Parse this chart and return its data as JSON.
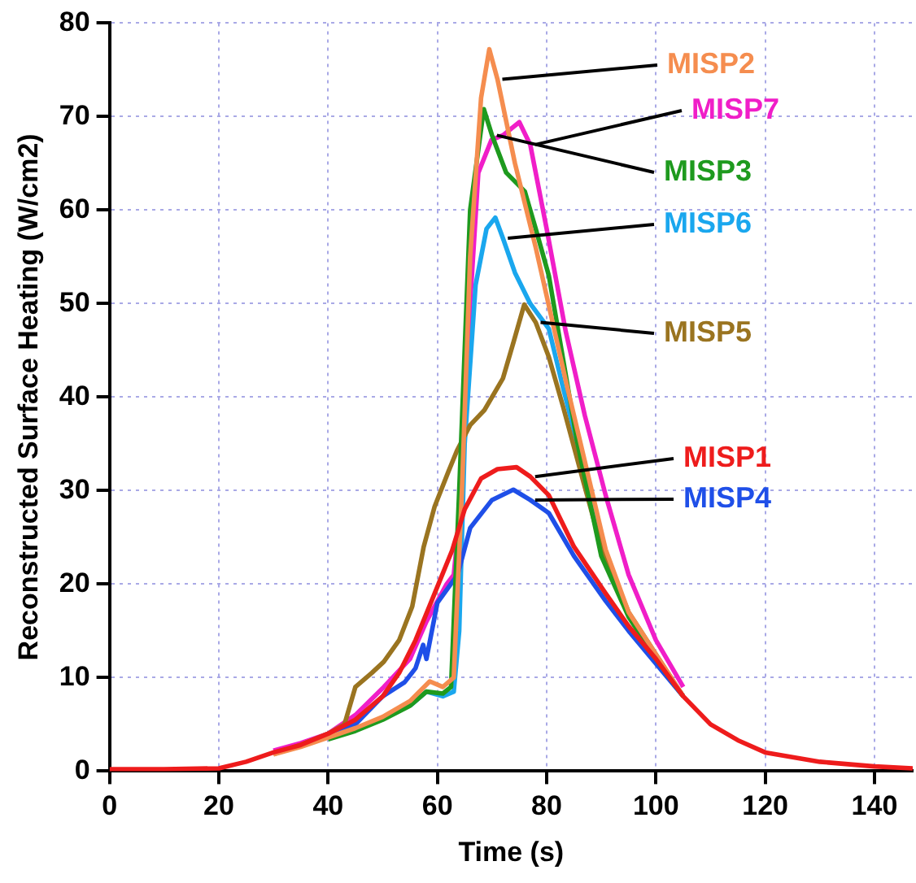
{
  "chart_data": {
    "type": "line",
    "xlabel": "Time (s)",
    "ylabel": "Reconstructed Surface Heating (W/cm2)",
    "xlim": [
      0,
      147
    ],
    "xticks": [
      0,
      20,
      40,
      60,
      80,
      100,
      120,
      140
    ],
    "ylim": [
      0,
      80
    ],
    "yticks": [
      0,
      10,
      20,
      30,
      40,
      50,
      60,
      70,
      80
    ],
    "grid": true,
    "legend": false,
    "marker": "none",
    "line_style": "solid",
    "series": [
      {
        "name": "MISP1",
        "color": "#ee1c1c",
        "x": [
          0,
          10,
          20,
          25,
          30,
          35,
          40,
          45,
          50,
          53,
          56,
          59.5,
          62.7,
          65,
          68,
          71,
          74.5,
          77,
          80.4,
          85,
          90.8,
          95,
          100,
          105,
          110,
          115,
          120,
          130,
          140,
          147
        ],
        "values": [
          0.2,
          0.2,
          0.3,
          1,
          2,
          2.8,
          4,
          5.5,
          8,
          10.5,
          14,
          19,
          23.6,
          28,
          31.3,
          32.3,
          32.5,
          31.5,
          29.5,
          24,
          19,
          15.5,
          12,
          8,
          5,
          3.3,
          2,
          1,
          0.5,
          0.3
        ]
      },
      {
        "name": "MISP2",
        "color": "#f58d4f",
        "x": [
          30,
          35,
          40,
          45,
          50,
          55,
          58.6,
          61,
          63,
          64.5,
          66,
          68,
          69.5,
          71,
          74.2,
          78,
          83.6,
          90.8,
          95,
          100,
          105
        ],
        "values": [
          1.8,
          2.6,
          3.6,
          4.6,
          5.8,
          7.5,
          9.6,
          9,
          10,
          30,
          55,
          72,
          77.2,
          74,
          65,
          56,
          41.5,
          23.7,
          17,
          12.5,
          8
        ]
      },
      {
        "name": "MISP3",
        "color": "#1e9a1e",
        "x": [
          40,
          45,
          50,
          55,
          58,
          61,
          62.5,
          64,
          66,
          68.5,
          70,
          72.6,
          76,
          78,
          80.4,
          85.5,
          90,
          95,
          100,
          105
        ],
        "values": [
          3.4,
          4.3,
          5.5,
          7,
          8.5,
          8.3,
          9,
          30,
          60,
          70.8,
          68,
          64,
          62,
          58,
          53,
          35.5,
          23,
          16.5,
          12,
          8
        ]
      },
      {
        "name": "MISP4",
        "color": "#1f4fe8",
        "x": [
          40,
          45,
          50,
          54,
          56,
          57.4,
          58,
          60,
          63.7,
          66,
          70,
          73.9,
          77,
          80.4,
          85,
          90.8,
          95,
          100,
          105
        ],
        "values": [
          3.8,
          5,
          8,
          9.5,
          11,
          13.5,
          12,
          18,
          21,
          26,
          29,
          30.1,
          29,
          27.6,
          23,
          18.2,
          15,
          11.5,
          8
        ]
      },
      {
        "name": "MISP5",
        "color": "#9a7420",
        "x": [
          30,
          35,
          40,
          43,
          45,
          48,
          50.2,
          53,
          55.4,
          57.5,
          59.5,
          62,
          63.6,
          66,
          68.6,
          72,
          74,
          75.9,
          78,
          80.4,
          83,
          86.7,
          90,
          95,
          100,
          105
        ],
        "values": [
          1.8,
          2.8,
          4,
          5,
          9,
          10.5,
          11.7,
          14,
          17.6,
          24,
          28.3,
          32,
          34.3,
          37,
          38.6,
          42,
          46,
          49.9,
          48,
          44.3,
          39,
          31,
          24,
          17,
          12.5,
          8
        ]
      },
      {
        "name": "MISP6",
        "color": "#1aa7ee",
        "x": [
          55,
          58,
          61,
          63,
          64,
          65,
          67,
          69,
          70.6,
          72,
          74.2,
          77,
          80.4,
          83,
          86.7,
          90
        ],
        "values": [
          7,
          8.5,
          8,
          8.5,
          15,
          35,
          52,
          58,
          59.2,
          57,
          53.3,
          50,
          47.3,
          41,
          32.5,
          24
        ]
      },
      {
        "name": "MISP7",
        "color": "#f01ec8",
        "x": [
          30,
          35,
          40,
          45,
          50.2,
          55,
          58,
          61.7,
          63,
          64.5,
          66,
          67.5,
          69.9,
          72,
          75,
          77,
          80,
          83.5,
          87,
          90.8,
          95,
          100,
          105
        ],
        "values": [
          2.2,
          3,
          4,
          6,
          9,
          12,
          16,
          20,
          21,
          30,
          50,
          64,
          67.5,
          68,
          69.4,
          67,
          58,
          47,
          38,
          29.5,
          21,
          14,
          9
        ]
      }
    ]
  }
}
